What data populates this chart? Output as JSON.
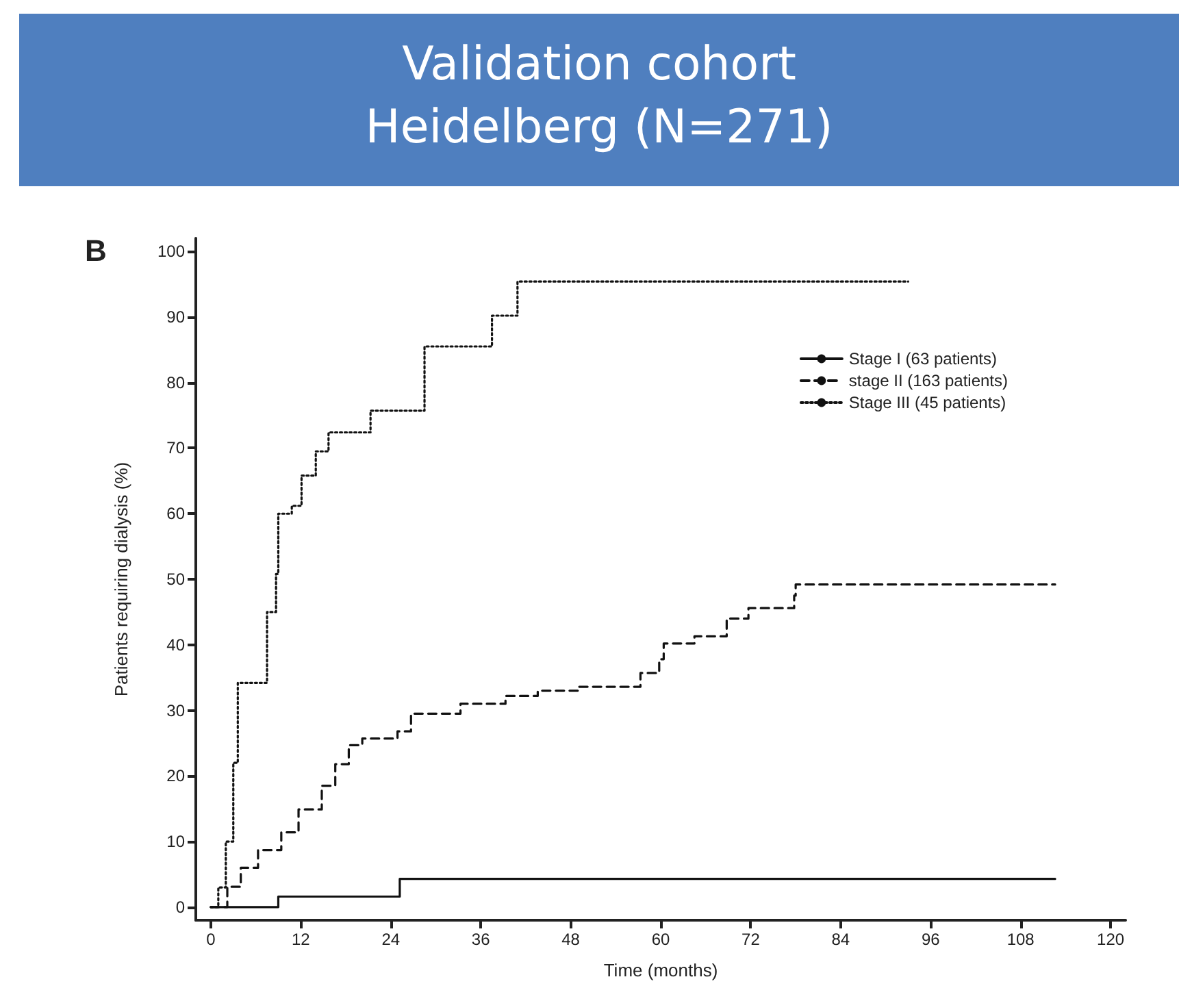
{
  "chart_data": {
    "type": "step",
    "title": "Validation cohort\nHeidelberg (N=271)",
    "xlabel": "Time (months)",
    "ylabel": "Patients requiring dialysis (%)",
    "annotations": [
      "B"
    ],
    "xlim": [
      -2,
      122
    ],
    "xticks": [
      0,
      12,
      24,
      36,
      48,
      60,
      72,
      84,
      96,
      108,
      120
    ],
    "ylim": [
      -2,
      102
    ],
    "yticks": [
      0,
      10,
      20,
      30,
      40,
      50,
      60,
      70,
      80,
      90,
      100
    ],
    "grid": false,
    "legend": "top right",
    "marker": "none",
    "series": [
      {
        "name": "Stage I (63 patients)",
        "color": "#111111",
        "line_style": "solid",
        "x": [
          0,
          9,
          25.2,
          112.6
        ],
        "values": [
          0,
          1.6,
          4.3,
          4.3
        ]
      },
      {
        "name": "stage II (163 patients)",
        "color": "#111111",
        "line_style": "dashed",
        "x": [
          0,
          2.2,
          4,
          6.3,
          9.4,
          11.7,
          14.8,
          16.6,
          18.4,
          20.2,
          24.9,
          26.7,
          33.3,
          39.3,
          43.6,
          49,
          57.3,
          59.8,
          60.4,
          64.5,
          68.8,
          71.7,
          77.8,
          78,
          112.6
        ],
        "values": [
          0,
          3.1,
          6,
          8.7,
          11.4,
          14.9,
          18.5,
          21.8,
          24.7,
          25.7,
          26.8,
          29.5,
          31,
          32.2,
          33,
          33.6,
          35.7,
          37.8,
          40.2,
          41.3,
          44,
          45.6,
          47.5,
          49.2,
          49.2
        ]
      },
      {
        "name": "Stage III (45 patients)",
        "color": "#111111",
        "line_style": "dotted",
        "x": [
          0,
          1,
          2,
          3,
          3.6,
          6.7,
          7.5,
          8.7,
          9,
          10.8,
          12.1,
          14,
          15.7,
          21.3,
          28.5,
          37.5,
          40.9,
          93
        ],
        "values": [
          0,
          3,
          10,
          22,
          34.2,
          34.2,
          45,
          50.8,
          60,
          61.2,
          65.8,
          69.5,
          72.4,
          75.7,
          85.5,
          90.2,
          95.4,
          95.4
        ]
      }
    ]
  }
}
